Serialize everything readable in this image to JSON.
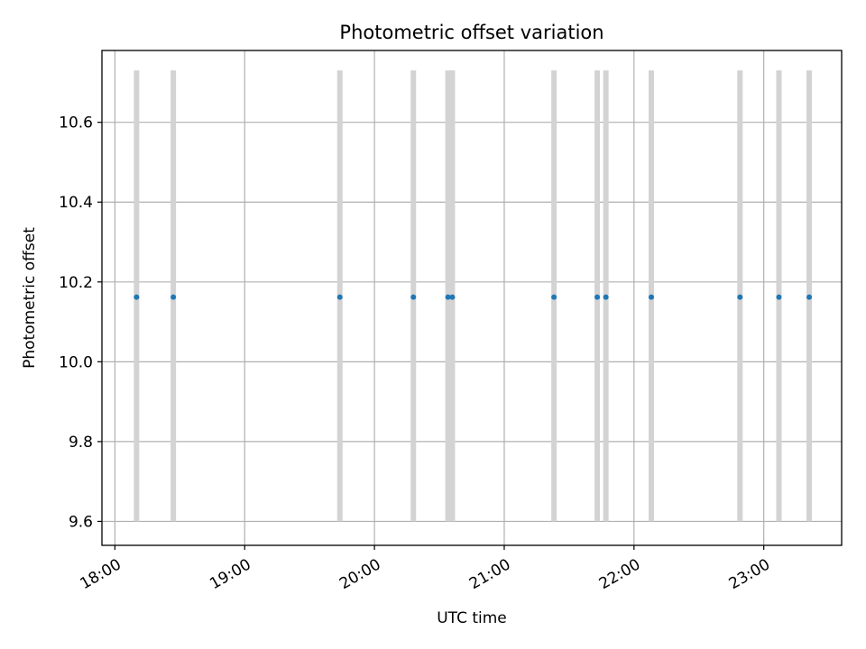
{
  "chart_data": {
    "type": "scatter",
    "title": "Photometric offset variation",
    "xlabel": "UTC time",
    "ylabel": "Photometric offset",
    "x_ticks": [
      "18:00",
      "19:00",
      "20:00",
      "21:00",
      "22:00",
      "23:00"
    ],
    "y_ticks": [
      "9.6",
      "9.8",
      "10.0",
      "10.2",
      "10.4",
      "10.6"
    ],
    "xlim": [
      "17:54",
      "23:36"
    ],
    "ylim": [
      9.54,
      10.78
    ],
    "grid": true,
    "colors": {
      "marker": "#1f77b4",
      "band": "#d3d3d3",
      "grid": "#b0b0b0"
    },
    "bands": {
      "y_low": 9.6,
      "y_high": 10.73,
      "note_color": "#d3d3d3"
    },
    "series": [
      {
        "x": [
          "18:10",
          "18:27",
          "19:44",
          "20:18",
          "20:34",
          "20:36",
          "21:23",
          "21:43",
          "21:47",
          "22:08",
          "22:49",
          "23:07",
          "23:21"
        ],
        "y": [
          10.162,
          10.162,
          10.162,
          10.162,
          10.162,
          10.162,
          10.162,
          10.162,
          10.162,
          10.162,
          10.162,
          10.162,
          10.162
        ]
      }
    ]
  }
}
